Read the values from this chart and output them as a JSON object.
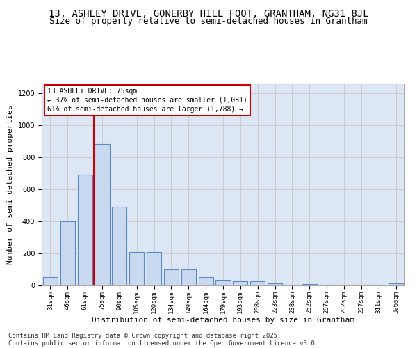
{
  "title1": "13, ASHLEY DRIVE, GONERBY HILL FOOT, GRANTHAM, NG31 8JL",
  "title2": "Size of property relative to semi-detached houses in Grantham",
  "xlabel": "Distribution of semi-detached houses by size in Grantham",
  "ylabel": "Number of semi-detached properties",
  "categories": [
    "31sqm",
    "46sqm",
    "61sqm",
    "75sqm",
    "90sqm",
    "105sqm",
    "120sqm",
    "134sqm",
    "149sqm",
    "164sqm",
    "179sqm",
    "193sqm",
    "208sqm",
    "223sqm",
    "238sqm",
    "252sqm",
    "267sqm",
    "282sqm",
    "297sqm",
    "311sqm",
    "326sqm"
  ],
  "values": [
    50,
    400,
    690,
    880,
    490,
    210,
    210,
    100,
    100,
    50,
    30,
    25,
    25,
    15,
    5,
    10,
    5,
    5,
    5,
    5,
    15
  ],
  "bar_color": "#c8d9f0",
  "bar_edge_color": "#5b8cc8",
  "highlight_index": 3,
  "vline_x": 2.5,
  "vline_color": "#cc0000",
  "annotation_title": "13 ASHLEY DRIVE: 75sqm",
  "annotation_line1": "← 37% of semi-detached houses are smaller (1,081)",
  "annotation_line2": "61% of semi-detached houses are larger (1,788) →",
  "annotation_box_color": "#cc0000",
  "ylim": [
    0,
    1260
  ],
  "yticks": [
    0,
    200,
    400,
    600,
    800,
    1000,
    1200
  ],
  "grid_color": "#cccccc",
  "bg_color": "#dce6f5",
  "footer1": "Contains HM Land Registry data © Crown copyright and database right 2025.",
  "footer2": "Contains public sector information licensed under the Open Government Licence v3.0.",
  "title1_fontsize": 10,
  "title2_fontsize": 9,
  "tick_fontsize": 6.5,
  "ylabel_fontsize": 8,
  "xlabel_fontsize": 8,
  "footer_fontsize": 6.5
}
